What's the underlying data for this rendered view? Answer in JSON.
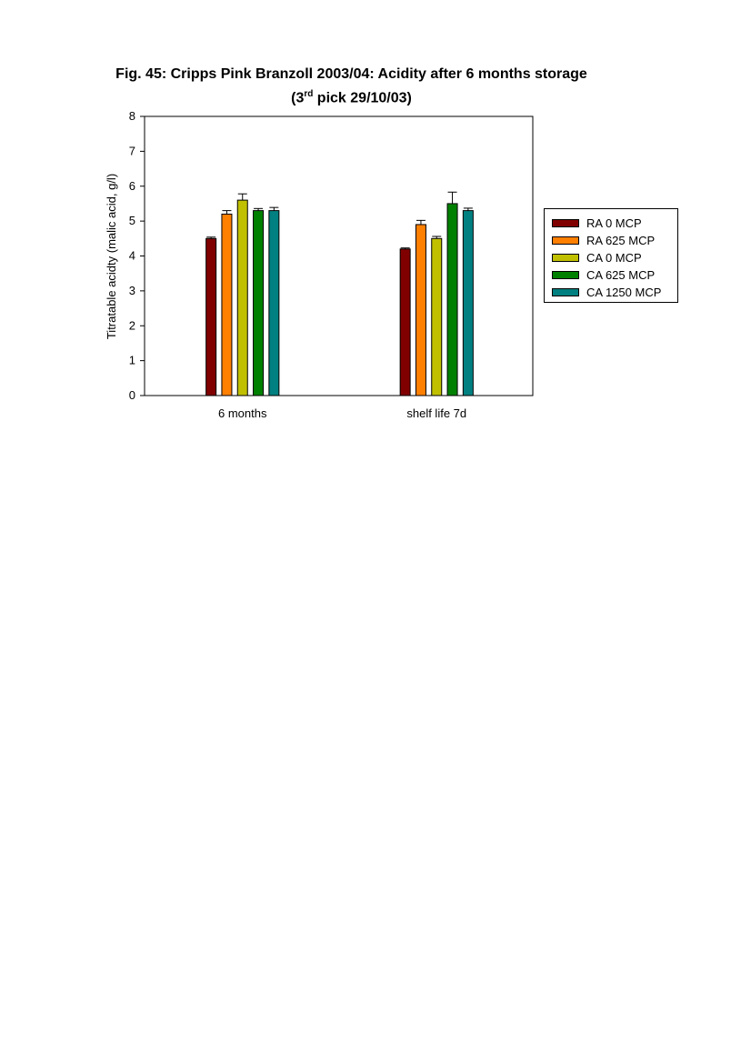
{
  "chart_data": {
    "type": "bar",
    "title": "Fig. 45: Cripps Pink Branzoll 2003/04: Acidity after 6 months storage",
    "subtitle_prefix": "(3",
    "subtitle_sup": "rd",
    "subtitle_rest": " pick 29/10/03)",
    "ylabel": "Titratable acidty (malic acid, g/l)",
    "xlabel": "",
    "ylim": [
      0,
      8
    ],
    "yticks": [
      "0",
      "1",
      "2",
      "3",
      "4",
      "5",
      "6",
      "7",
      "8"
    ],
    "categories": [
      "6 months",
      "shelf life 7d"
    ],
    "series": [
      {
        "name": "RA 0 MCP",
        "color": "#800000",
        "values": [
          4.5,
          4.2
        ],
        "errors": [
          0.04,
          0.03
        ]
      },
      {
        "name": "RA 625 MCP",
        "color": "#ff8000",
        "values": [
          5.2,
          4.9
        ],
        "errors": [
          0.1,
          0.12
        ]
      },
      {
        "name": "CA 0 MCP",
        "color": "#c0c000",
        "values": [
          5.6,
          4.5
        ],
        "errors": [
          0.18,
          0.06
        ]
      },
      {
        "name": "CA 625 MCP",
        "color": "#008000",
        "values": [
          5.3,
          5.5
        ],
        "errors": [
          0.06,
          0.33
        ]
      },
      {
        "name": "CA 1250 MCP",
        "color": "#008080",
        "values": [
          5.3,
          5.3
        ],
        "errors": [
          0.09,
          0.07
        ]
      }
    ],
    "grid": false,
    "legend_position": "right"
  }
}
